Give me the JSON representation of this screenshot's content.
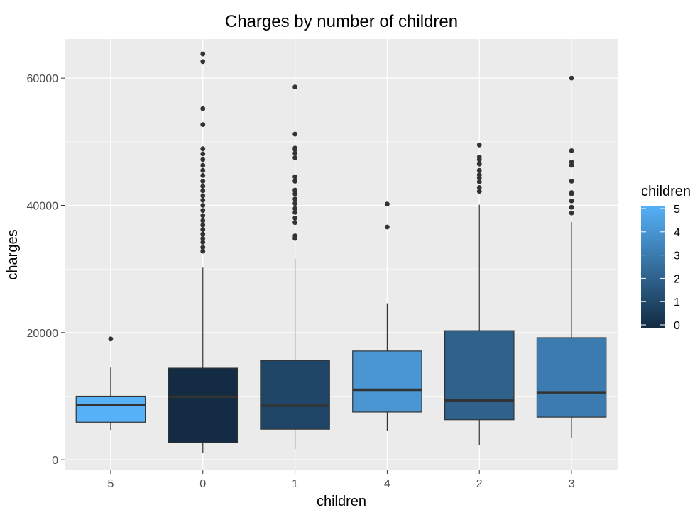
{
  "chart_data": {
    "type": "boxplot",
    "title": "Charges by number of children",
    "xlabel": "children",
    "ylabel": "charges",
    "ylim": [
      -1650,
      66150
    ],
    "yticks": [
      0,
      20000,
      40000,
      60000
    ],
    "grid": true,
    "legend": {
      "title": "children",
      "position": "right",
      "min": 0,
      "max": 5,
      "ticks": [
        0,
        1,
        2,
        3,
        4,
        5
      ],
      "low_color": "#132B43",
      "high_color": "#56B1F7"
    },
    "categories": [
      "5",
      "0",
      "1",
      "4",
      "2",
      "3"
    ],
    "boxes": [
      {
        "category": "5",
        "value": 5,
        "lower_whisker": 4700,
        "q1": 5900,
        "median": 8600,
        "q3": 10000,
        "upper_whisker": 14500,
        "outliers": [
          19000
        ]
      },
      {
        "category": "0",
        "value": 0,
        "lower_whisker": 1100,
        "q1": 2700,
        "median": 9900,
        "q3": 14400,
        "upper_whisker": 30200,
        "outliers": [
          32800,
          33400,
          34200,
          34800,
          35500,
          36200,
          36900,
          37600,
          38400,
          39200,
          40000,
          40800,
          41500,
          42300,
          43000,
          43800,
          44700,
          45500,
          46300,
          47200,
          48100,
          48900,
          52700,
          55200,
          62600,
          63800
        ]
      },
      {
        "category": "1",
        "value": 1,
        "lower_whisker": 1700,
        "q1": 4800,
        "median": 8500,
        "q3": 15600,
        "upper_whisker": 31600,
        "outliers": [
          34800,
          35200,
          37300,
          38000,
          38900,
          39500,
          40300,
          41000,
          41800,
          42400,
          43800,
          44500,
          47500,
          48200,
          48800,
          49000,
          51200,
          58600
        ]
      },
      {
        "category": "4",
        "value": 4,
        "lower_whisker": 4500,
        "q1": 7500,
        "median": 11000,
        "q3": 17100,
        "upper_whisker": 24600,
        "outliers": [
          36600,
          40200
        ]
      },
      {
        "category": "2",
        "value": 2,
        "lower_whisker": 2300,
        "q1": 6300,
        "median": 9300,
        "q3": 20300,
        "upper_whisker": 40100,
        "outliers": [
          42200,
          42800,
          43700,
          44300,
          44800,
          45500,
          46500,
          47200,
          47600,
          49500
        ]
      },
      {
        "category": "3",
        "value": 3,
        "lower_whisker": 3400,
        "q1": 6700,
        "median": 10600,
        "q3": 19200,
        "upper_whisker": 37400,
        "outliers": [
          38800,
          39700,
          40700,
          41800,
          42000,
          43800,
          46300,
          46800,
          48600,
          60000
        ]
      }
    ]
  }
}
